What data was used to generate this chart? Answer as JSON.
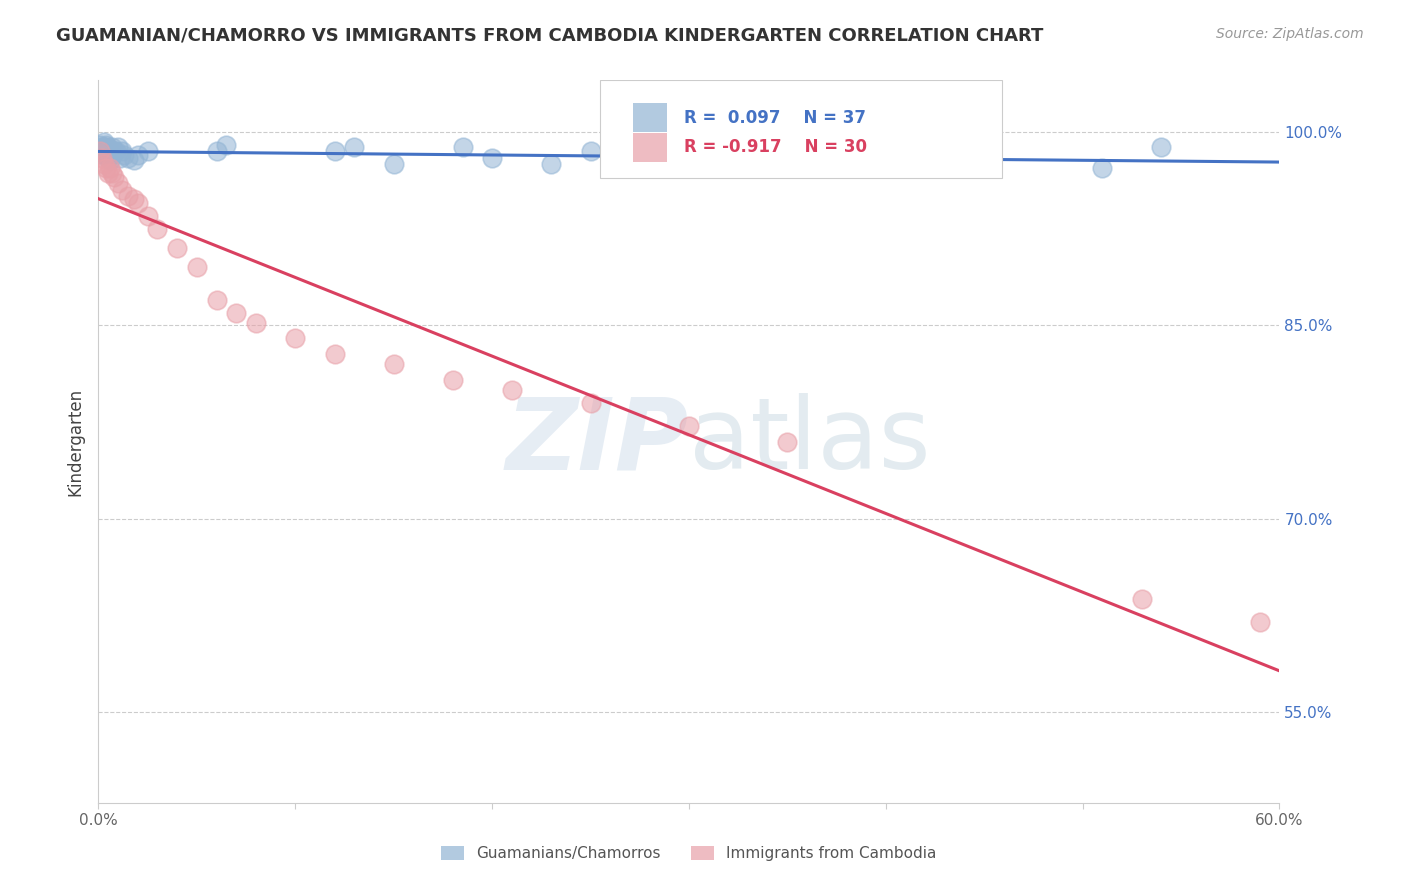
{
  "title": "GUAMANIAN/CHAMORRO VS IMMIGRANTS FROM CAMBODIA KINDERGARTEN CORRELATION CHART",
  "source_text": "Source: ZipAtlas.com",
  "ylabel": "Kindergarten",
  "watermark": "ZIPatlas",
  "xlim": [
    0.0,
    0.6
  ],
  "ylim": [
    0.48,
    1.04
  ],
  "xticks": [
    0.0,
    0.1,
    0.2,
    0.3,
    0.4,
    0.5,
    0.6
  ],
  "xticklabels": [
    "0.0%",
    "",
    "",
    "",
    "",
    "",
    "60.0%"
  ],
  "yticks_right": [
    0.55,
    0.7,
    0.85,
    1.0
  ],
  "yticklabels_right": [
    "55.0%",
    "70.0%",
    "85.0%",
    "100.0%"
  ],
  "blue_color": "#92b4d4",
  "pink_color": "#e8a0a8",
  "blue_line_color": "#4472c4",
  "pink_line_color": "#d94060",
  "legend_label_blue": "Guamanians/Chamorros",
  "legend_label_pink": "Immigrants from Cambodia",
  "grid_color": "#cccccc",
  "background_color": "#ffffff",
  "blue_scatter_x": [
    0.001,
    0.002,
    0.002,
    0.003,
    0.003,
    0.003,
    0.004,
    0.004,
    0.005,
    0.005,
    0.006,
    0.006,
    0.007,
    0.007,
    0.008,
    0.009,
    0.01,
    0.011,
    0.012,
    0.013,
    0.015,
    0.018,
    0.02,
    0.025,
    0.06,
    0.065,
    0.12,
    0.13,
    0.15,
    0.185,
    0.2,
    0.23,
    0.25,
    0.28,
    0.32,
    0.51,
    0.54
  ],
  "blue_scatter_y": [
    0.99,
    0.988,
    0.985,
    0.992,
    0.988,
    0.982,
    0.99,
    0.985,
    0.988,
    0.98,
    0.985,
    0.978,
    0.988,
    0.982,
    0.985,
    0.985,
    0.988,
    0.98,
    0.985,
    0.982,
    0.98,
    0.978,
    0.982,
    0.985,
    0.985,
    0.99,
    0.985,
    0.988,
    0.975,
    0.988,
    0.98,
    0.975,
    0.985,
    0.978,
    0.975,
    0.972,
    0.988
  ],
  "pink_scatter_x": [
    0.001,
    0.002,
    0.003,
    0.004,
    0.005,
    0.006,
    0.007,
    0.008,
    0.01,
    0.012,
    0.015,
    0.018,
    0.02,
    0.025,
    0.03,
    0.04,
    0.05,
    0.06,
    0.07,
    0.08,
    0.1,
    0.12,
    0.15,
    0.18,
    0.21,
    0.25,
    0.3,
    0.35,
    0.53,
    0.59
  ],
  "pink_scatter_y": [
    0.985,
    0.98,
    0.975,
    0.972,
    0.968,
    0.972,
    0.968,
    0.965,
    0.96,
    0.955,
    0.95,
    0.948,
    0.945,
    0.935,
    0.925,
    0.91,
    0.895,
    0.87,
    0.86,
    0.852,
    0.84,
    0.828,
    0.82,
    0.808,
    0.8,
    0.79,
    0.772,
    0.76,
    0.638,
    0.62
  ]
}
